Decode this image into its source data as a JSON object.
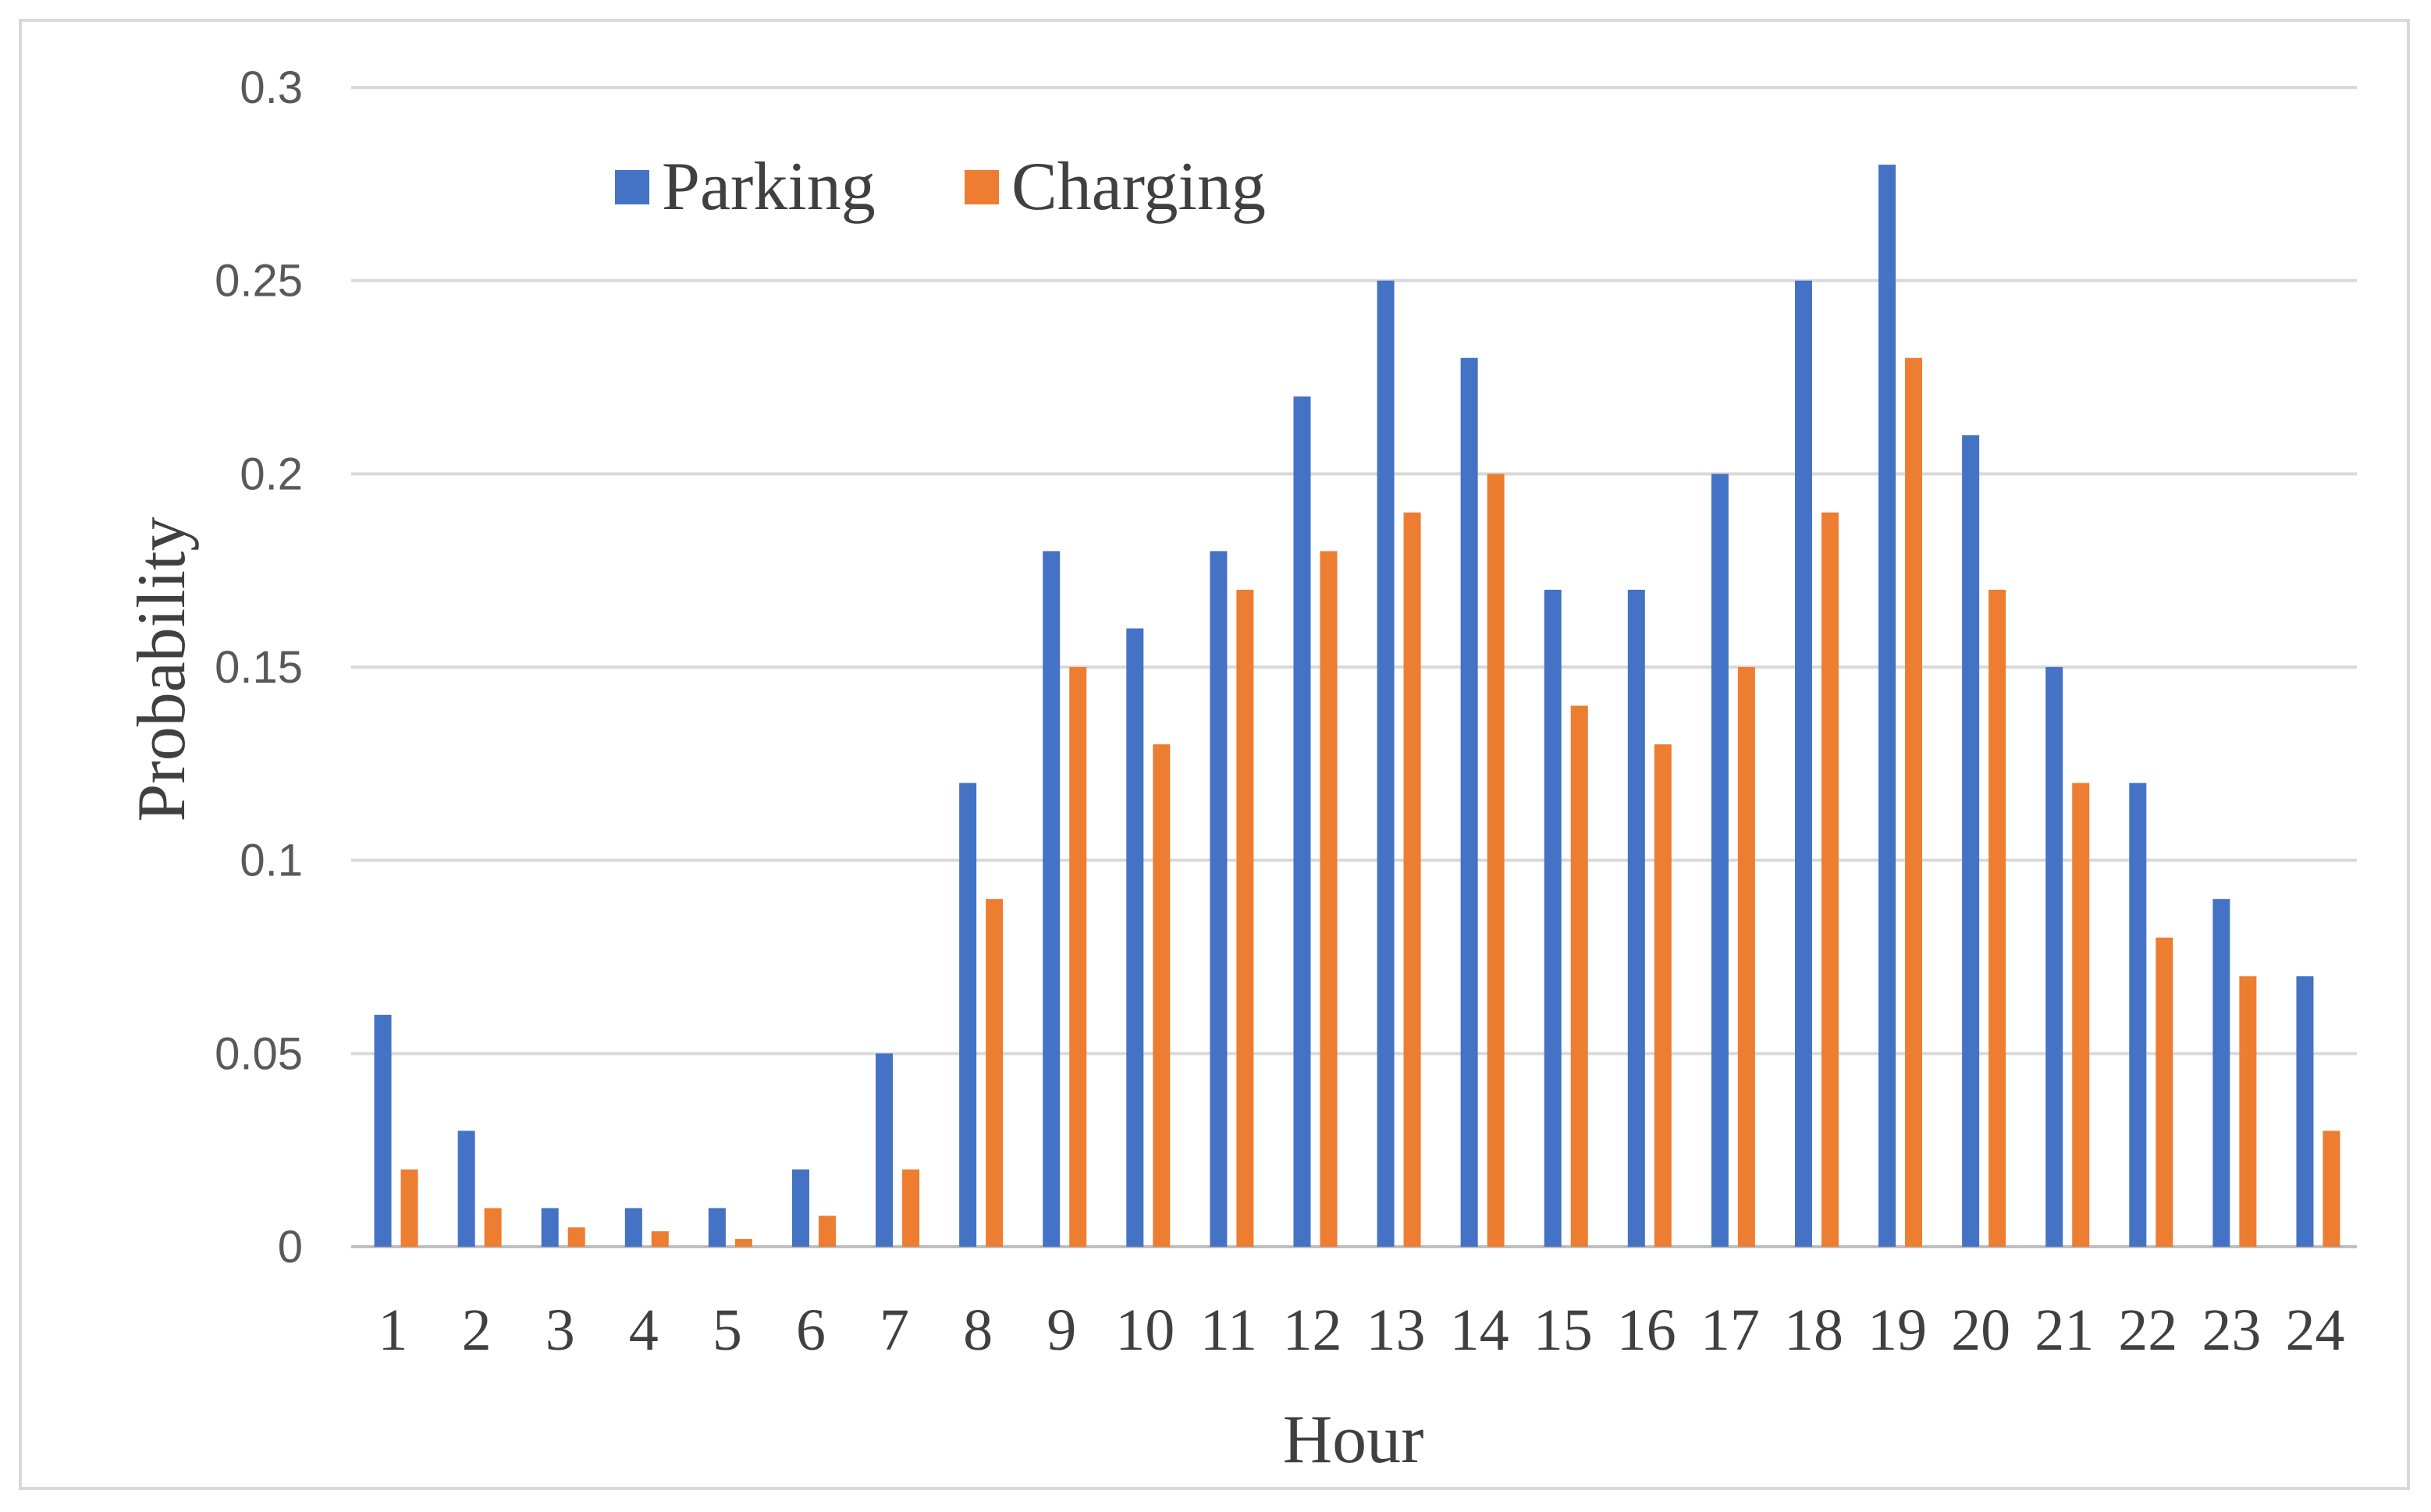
{
  "chart_data": {
    "type": "bar",
    "title": "",
    "xlabel": "Hour",
    "ylabel": "Probability",
    "categories": [
      "1",
      "2",
      "3",
      "4",
      "5",
      "6",
      "7",
      "8",
      "9",
      "10",
      "11",
      "12",
      "13",
      "14",
      "15",
      "16",
      "17",
      "18",
      "19",
      "20",
      "21",
      "22",
      "23",
      "24"
    ],
    "series": [
      {
        "name": "Parking",
        "color": "#4472C4",
        "values": [
          0.06,
          0.03,
          0.01,
          0.01,
          0.01,
          0.02,
          0.05,
          0.12,
          0.18,
          0.16,
          0.18,
          0.22,
          0.25,
          0.23,
          0.17,
          0.17,
          0.2,
          0.25,
          0.28,
          0.21,
          0.15,
          0.12,
          0.09,
          0.07
        ]
      },
      {
        "name": "Charging",
        "color": "#ED7D31",
        "values": [
          0.02,
          0.01,
          0.005,
          0.004,
          0.002,
          0.008,
          0.02,
          0.09,
          0.15,
          0.13,
          0.17,
          0.18,
          0.19,
          0.2,
          0.14,
          0.13,
          0.15,
          0.19,
          0.23,
          0.17,
          0.12,
          0.08,
          0.07,
          0.03
        ]
      }
    ],
    "ylim": [
      0,
      0.3
    ],
    "yticks": [
      "0",
      "0.05",
      "0.1",
      "0.15",
      "0.2",
      "0.25",
      "0.3"
    ],
    "grid": true,
    "legend_position": "top-left"
  },
  "colors": {
    "gridline": "#d9d9d9",
    "axis": "#bfbfbf"
  }
}
